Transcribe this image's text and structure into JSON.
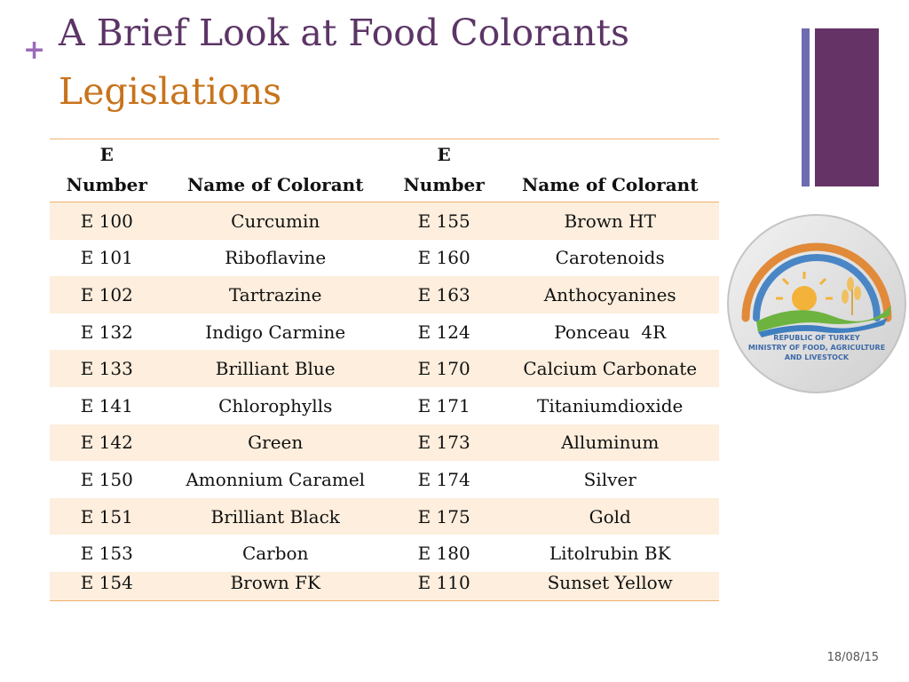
{
  "slide": {
    "bullet": "+",
    "title": "A Brief Look at Food Colorants",
    "subtitle": "Legislations",
    "date": "18/08/15"
  },
  "logo": {
    "line1": "REPUBLIC OF TURKEY",
    "line2": "MINISTRY OF FOOD, AGRICULTURE",
    "line3": "AND LIVESTOCK"
  },
  "table": {
    "headers": {
      "e_number_1_top": "E",
      "e_number_1_bottom": "Number",
      "name_1": "Name of Colorant",
      "e_number_2_top": "E",
      "e_number_2_bottom": "Number",
      "name_2": "Name of Colorant"
    },
    "rows": [
      {
        "e1": "E 100",
        "n1": "Curcumin",
        "e2": "E 155",
        "n2": "Brown HT"
      },
      {
        "e1": "E 101",
        "n1": "Riboflavine",
        "e2": "E 160",
        "n2": "Carotenoids"
      },
      {
        "e1": "E 102",
        "n1": "Tartrazine",
        "e2": "E 163",
        "n2": "Anthocyanines"
      },
      {
        "e1": "E 132",
        "n1": "Indigo Carmine",
        "e2": "E 124",
        "n2": "Ponceau  4R"
      },
      {
        "e1": "E 133",
        "n1": "Brilliant Blue",
        "e2": "E 170",
        "n2": "Calcium Carbonate"
      },
      {
        "e1": "E 141",
        "n1": "Chlorophylls",
        "e2": "E 171",
        "n2": "Titaniumdioxide"
      },
      {
        "e1": "E 142",
        "n1": "Green",
        "e2": "E 173",
        "n2": "Alluminum"
      },
      {
        "e1": "E 150",
        "n1": "Amonnium Caramel",
        "e2": "E 174",
        "n2": "Silver"
      },
      {
        "e1": "E 151",
        "n1": "Brilliant Black",
        "e2": "E 175",
        "n2": "Gold"
      },
      {
        "e1": "E 153",
        "n1": "Carbon",
        "e2": "E 180",
        "n2": "Litolrubin BK"
      },
      {
        "e1": "E 154",
        "n1": "Brown FK",
        "e2": "E 110",
        "n2": "Sunset Yellow"
      }
    ]
  },
  "colors": {
    "title": "#5c3566",
    "subtitle": "#c8731c",
    "accent_bar": "#663366",
    "accent_bar_thin": "#6f6bb1",
    "row_shade": "#fdeedd",
    "table_rule": "#f0b070"
  }
}
